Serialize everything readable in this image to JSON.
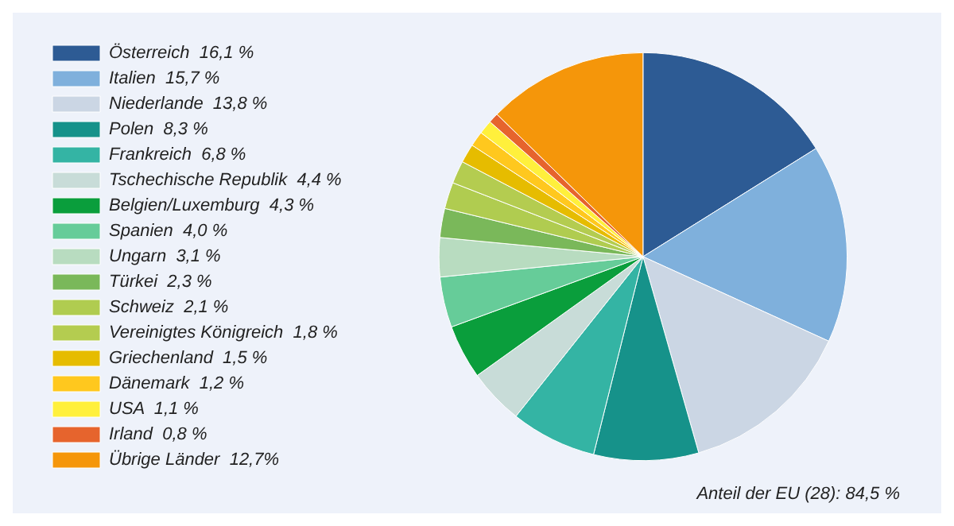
{
  "chart_data": {
    "type": "pie",
    "categories": [
      "Österreich",
      "Italien",
      "Niederlande",
      "Polen",
      "Frankreich",
      "Tschechische Republik",
      "Belgien/Luxemburg",
      "Spanien",
      "Ungarn",
      "Türkei",
      "Schweiz",
      "Vereinigtes Königreich",
      "Griechenland",
      "Dänemark",
      "USA",
      "Irland",
      "Übrige Länder"
    ],
    "values": [
      16.1,
      15.7,
      13.8,
      8.3,
      6.8,
      4.4,
      4.3,
      4.0,
      3.1,
      2.3,
      2.1,
      1.8,
      1.5,
      1.2,
      1.1,
      0.8,
      12.7
    ],
    "value_labels": [
      "16,1 %",
      "15,7 %",
      "13,8 %",
      "8,3 %",
      "6,8 %",
      "4,4 %",
      "4,3 %",
      "4,0 %",
      "3,1 %",
      "2,3 %",
      "2,1 %",
      "1,8 %",
      "1,5 %",
      "1,2 %",
      "1,1 %",
      "0,8 %",
      "12,7%"
    ],
    "colors": [
      "#2d5b94",
      "#7fb0dc",
      "#cbd6e4",
      "#16928a",
      "#34b4a4",
      "#c8dcd8",
      "#0a9e3c",
      "#66cc99",
      "#b8dcc0",
      "#7ab85a",
      "#b0cc50",
      "#b4cc50",
      "#e6bc00",
      "#ffc81e",
      "#fff03c",
      "#e6642d",
      "#f5960a"
    ],
    "legend": "left",
    "annotations": [
      "Anteil der EU (28): 84,5 %"
    ]
  }
}
